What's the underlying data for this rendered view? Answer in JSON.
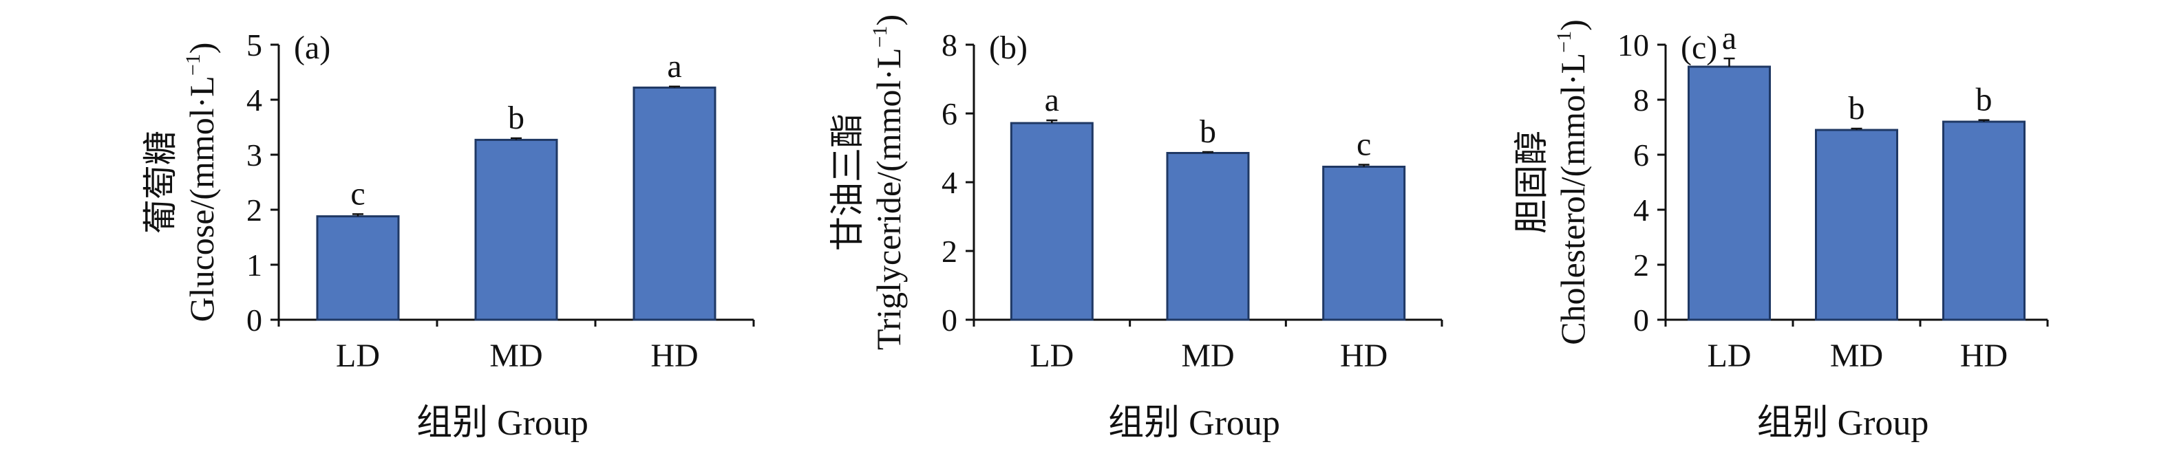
{
  "chart_data": [
    {
      "type": "bar",
      "panel_label": "(a)",
      "categories": [
        "LD",
        "MD",
        "HD"
      ],
      "values": [
        1.88,
        3.27,
        4.22
      ],
      "errors": [
        0.04,
        0.03,
        0.02
      ],
      "letters": [
        "c",
        "b",
        "a"
      ],
      "xlabel": "组别 Group",
      "ylabel_zh": "葡萄糖",
      "ylabel_en": "Glucose/(mmol·L",
      "ylabel_sup": "−1",
      "ylabel_close": ")",
      "ylim": [
        0,
        5
      ],
      "yticks": [
        0,
        1,
        2,
        3,
        4,
        5
      ],
      "bar_color": "#4f77be",
      "grid": false
    },
    {
      "type": "bar",
      "panel_label": "(b)",
      "categories": [
        "LD",
        "MD",
        "HD"
      ],
      "values": [
        5.72,
        4.85,
        4.45
      ],
      "errors": [
        0.08,
        0.03,
        0.06
      ],
      "letters": [
        "a",
        "b",
        "c"
      ],
      "xlabel": "组别 Group",
      "ylabel_zh": "甘油三酯",
      "ylabel_en": "Triglyceride/(mmol·L",
      "ylabel_sup": "−1",
      "ylabel_close": ")",
      "ylim": [
        0,
        8
      ],
      "yticks": [
        0,
        2,
        4,
        6,
        8
      ],
      "bar_color": "#4f77be",
      "grid": false
    },
    {
      "type": "bar",
      "panel_label": "(c)",
      "categories": [
        "LD",
        "MD",
        "HD"
      ],
      "values": [
        9.2,
        6.9,
        7.2
      ],
      "errors": [
        0.3,
        0.05,
        0.06
      ],
      "letters": [
        "a",
        "b",
        "b"
      ],
      "xlabel": "组别 Group",
      "ylabel_zh": "胆固醇",
      "ylabel_en": "Cholesterol/(mmol·L",
      "ylabel_sup": "−1",
      "ylabel_close": ")",
      "ylim": [
        0,
        10
      ],
      "yticks": [
        0,
        2,
        4,
        6,
        8,
        10
      ],
      "bar_color": "#4f77be",
      "grid": false
    }
  ]
}
